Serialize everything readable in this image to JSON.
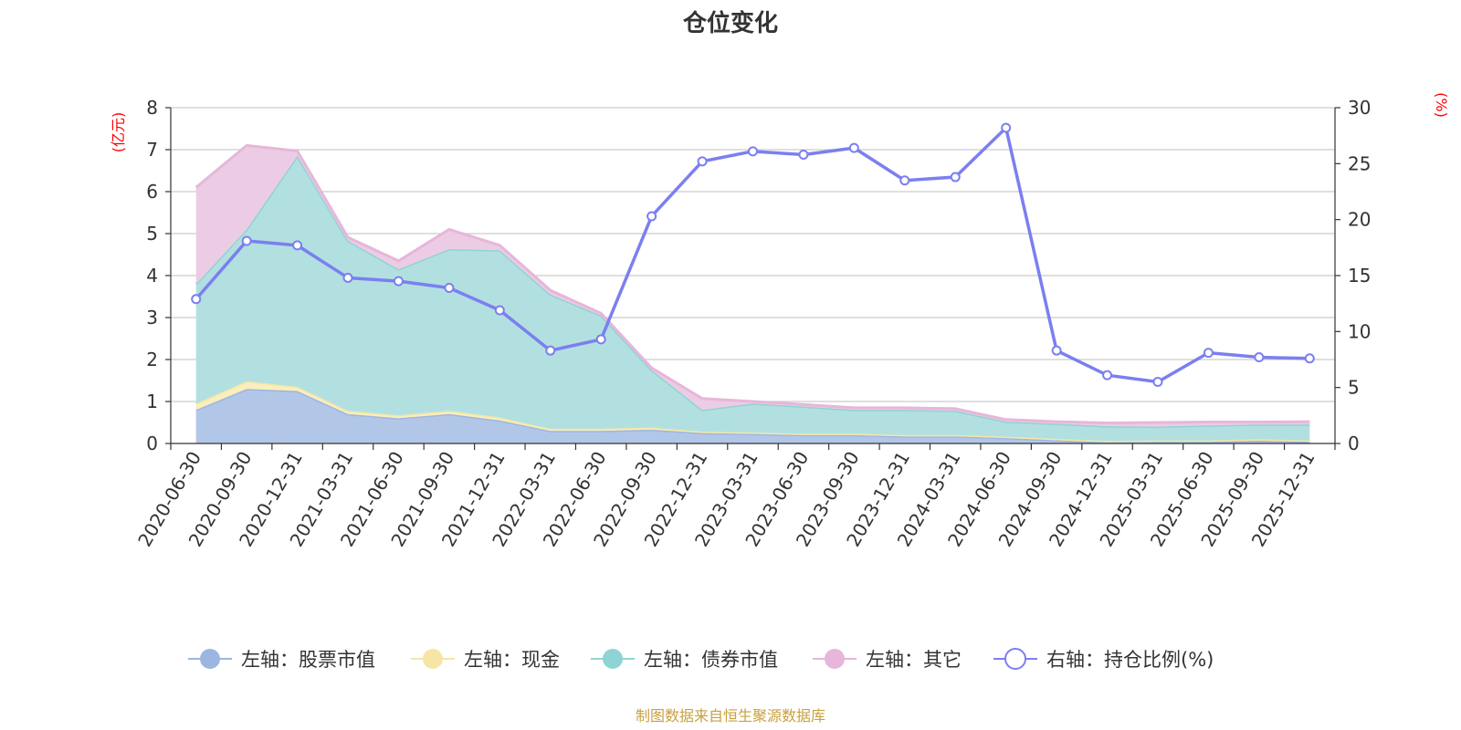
{
  "chart_data": {
    "type": "area",
    "title": "仓位变化",
    "left_axis": {
      "unit": "(亿元)",
      "ylim": [
        0,
        8
      ],
      "ticks": [
        "0",
        "1",
        "2",
        "3",
        "4",
        "5",
        "6",
        "7",
        "8"
      ]
    },
    "right_axis": {
      "unit": "(%)",
      "ylim": [
        0,
        30
      ],
      "ticks": [
        "0",
        "5",
        "10",
        "15",
        "20",
        "25",
        "30"
      ]
    },
    "unit_color": "#ff0000",
    "categories": [
      "2020-06-30",
      "2020-09-30",
      "2020-12-31",
      "2021-03-31",
      "2021-06-30",
      "2021-09-30",
      "2021-12-31",
      "2022-03-31",
      "2022-06-30",
      "2022-09-30",
      "2022-12-31",
      "2023-03-31",
      "2023-06-30",
      "2023-09-30",
      "2023-12-31",
      "2024-03-31",
      "2024-06-30",
      "2024-09-30",
      "2024-12-31",
      "2025-03-31",
      "2025-06-30",
      "2025-09-30",
      "2025-12-31"
    ],
    "series": [
      {
        "name": "左轴：股票市值",
        "axis": "left",
        "stack": true,
        "color": "#9db6e1",
        "fill": "#b2c6e8",
        "values": [
          0.8,
          1.3,
          1.25,
          0.7,
          0.6,
          0.7,
          0.55,
          0.3,
          0.3,
          0.33,
          0.25,
          0.23,
          0.2,
          0.2,
          0.17,
          0.17,
          0.13,
          0.08,
          0.03,
          0.04,
          0.04,
          0.07,
          0.04
        ]
      },
      {
        "name": "左轴：现金",
        "axis": "left",
        "stack": true,
        "color": "#f6e6a6",
        "fill": "#f9eebc",
        "values": [
          0.15,
          0.18,
          0.1,
          0.08,
          0.07,
          0.08,
          0.07,
          0.05,
          0.05,
          0.05,
          0.03,
          0.03,
          0.03,
          0.03,
          0.03,
          0.03,
          0.03,
          0.03,
          0.03,
          0.03,
          0.03,
          0.03,
          0.03
        ]
      },
      {
        "name": "左轴：债券市值",
        "axis": "left",
        "stack": true,
        "color": "#8fd4d4",
        "fill": "#b2e0e0",
        "values": [
          2.85,
          3.62,
          5.5,
          4.05,
          3.48,
          3.85,
          3.98,
          3.2,
          2.7,
          1.37,
          0.52,
          0.69,
          0.65,
          0.57,
          0.6,
          0.58,
          0.36,
          0.36,
          0.35,
          0.33,
          0.36,
          0.35,
          0.38
        ]
      },
      {
        "name": "左轴：其它",
        "axis": "left",
        "stack": true,
        "color": "#e7b6da",
        "fill": "#eccce4",
        "values": [
          2.3,
          2.0,
          0.12,
          0.08,
          0.2,
          0.47,
          0.12,
          0.1,
          0.05,
          0.05,
          0.27,
          0.05,
          0.05,
          0.05,
          0.05,
          0.05,
          0.05,
          0.05,
          0.08,
          0.1,
          0.08,
          0.06,
          0.07
        ]
      },
      {
        "name": "右轴：持仓比例(%)",
        "axis": "right",
        "stack": false,
        "color": "#7b7ff0",
        "fill": "none",
        "values": [
          12.9,
          18.1,
          17.7,
          14.8,
          14.5,
          13.9,
          11.9,
          8.3,
          9.3,
          20.3,
          25.2,
          26.1,
          25.8,
          26.4,
          23.5,
          23.8,
          28.2,
          8.3,
          6.1,
          5.5,
          8.1,
          7.7,
          7.6
        ]
      }
    ]
  },
  "footer": {
    "source": "制图数据来自恒生聚源数据库",
    "source_color": "#c8a040"
  }
}
